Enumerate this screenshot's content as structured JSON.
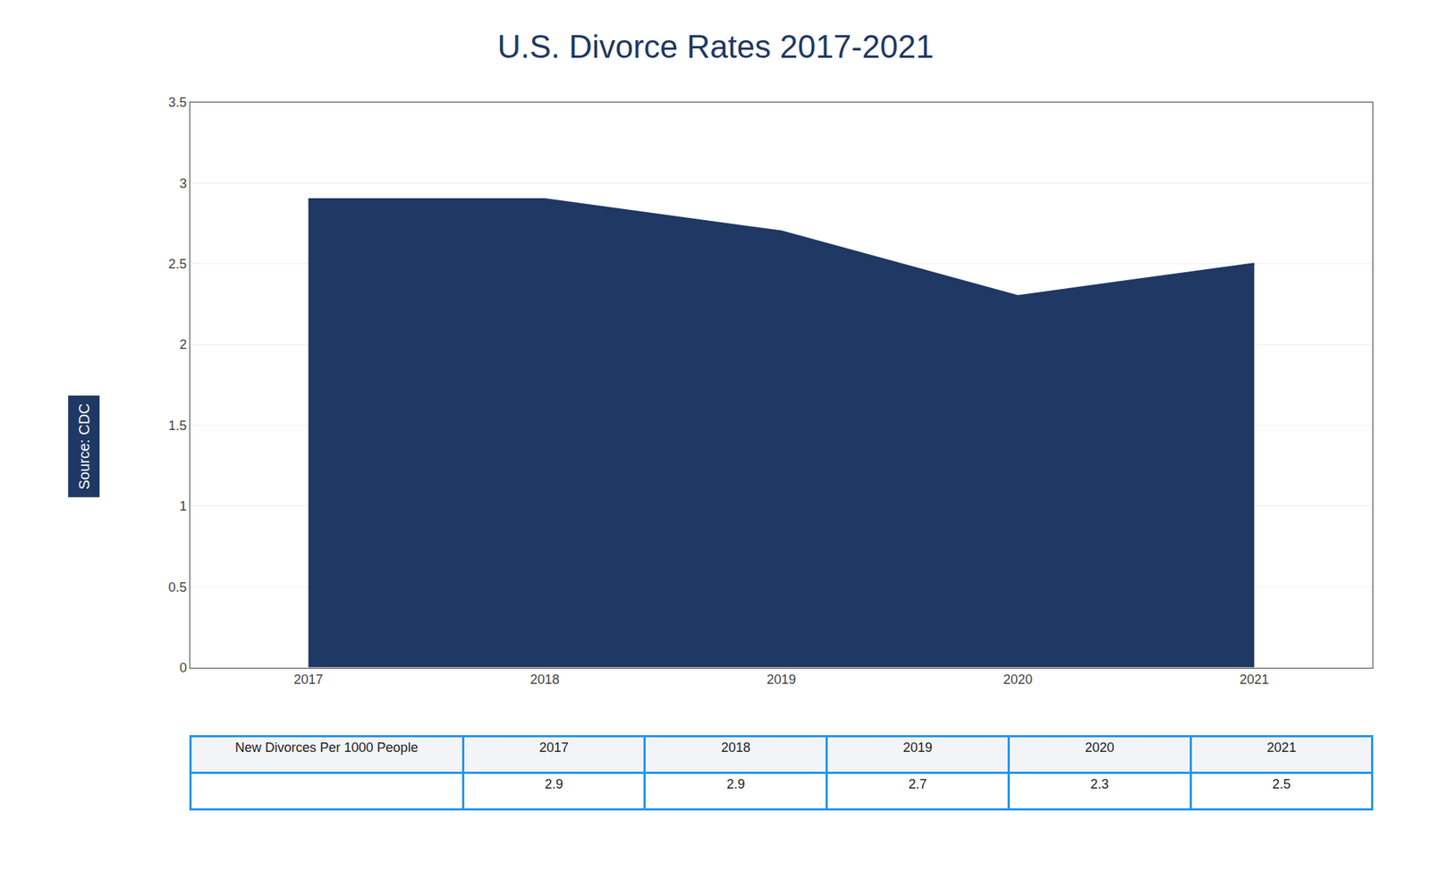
{
  "chart_data": {
    "type": "area",
    "title": "U.S. Divorce Rates 2017-2021",
    "x": [
      2017,
      2018,
      2019,
      2020,
      2021
    ],
    "series": [
      {
        "name": "New Divorces Per 1000 People",
        "color": "#1F3864",
        "values": [
          2.9,
          2.9,
          2.7,
          2.3,
          2.5
        ]
      }
    ],
    "xlim": [
      2016.5,
      2021.5
    ],
    "xticks": [
      2017,
      2018,
      2019,
      2020,
      2021
    ],
    "ylim": [
      0,
      3.5
    ],
    "yticks": [
      0,
      0.5,
      1.0,
      1.5,
      2.0,
      2.5,
      3.0,
      3.5
    ],
    "grid": true,
    "annotations": [
      "Source: CDC"
    ]
  }
}
